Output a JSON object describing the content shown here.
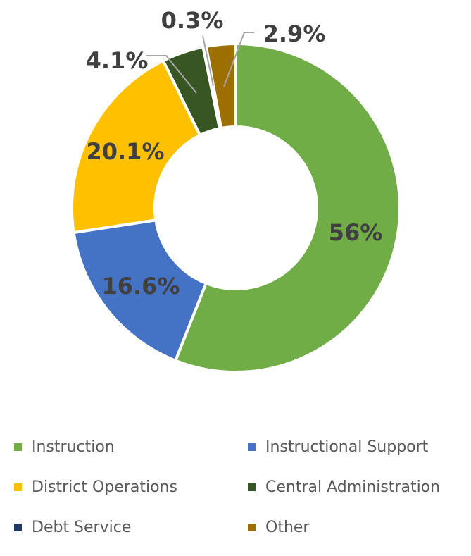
{
  "chart_data": {
    "type": "pie",
    "donut": true,
    "categories": [
      "Instruction",
      "Instructional Support",
      "District Operations",
      "Central Administration",
      "Debt Service",
      "Other"
    ],
    "values": [
      56,
      16.6,
      20.1,
      4.1,
      0.3,
      2.9
    ],
    "data_labels": [
      "56%",
      "16.6%",
      "20.1%",
      "4.1%",
      "0.3%",
      "2.9%"
    ],
    "colors": [
      "#70ad47",
      "#4472c4",
      "#ffc000",
      "#375623",
      "#1f3864",
      "#9c6f00"
    ],
    "title": "",
    "legend_position": "bottom"
  }
}
